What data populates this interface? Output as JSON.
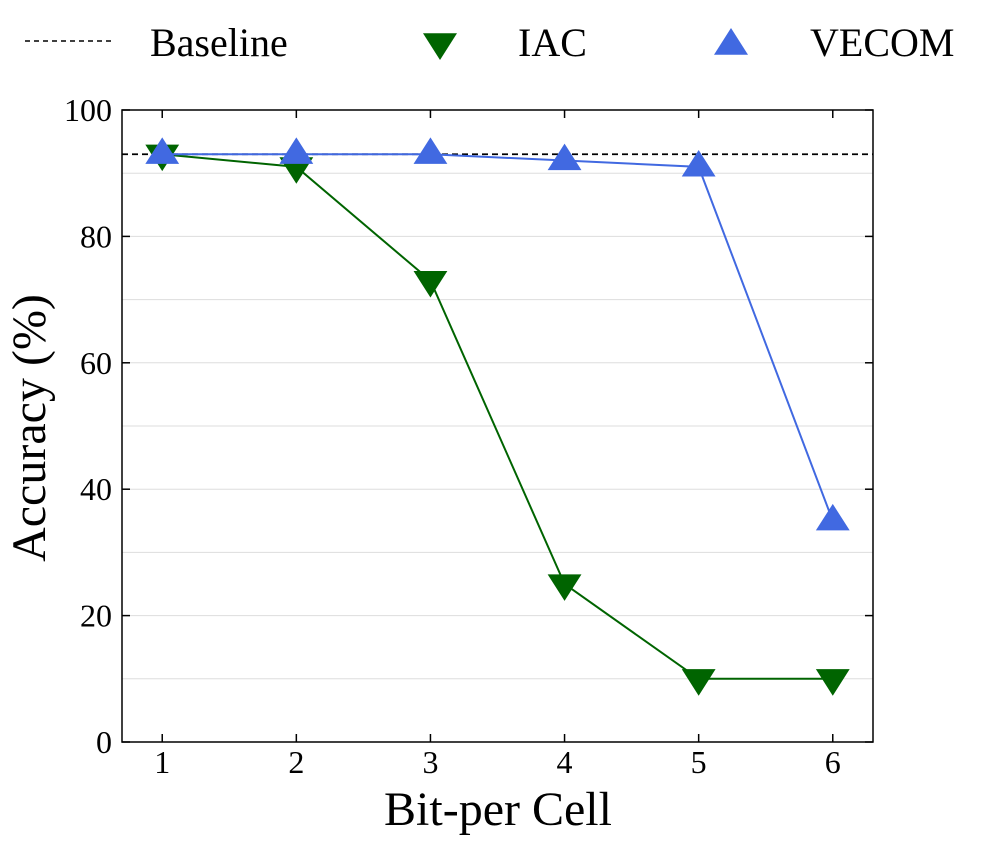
{
  "chart_data": {
    "type": "line",
    "title": "",
    "xlabel": "Bit-per Cell",
    "ylabel": "Accuracy (%)",
    "categories": [
      1,
      2,
      3,
      4,
      5,
      6
    ],
    "xlim": [
      0.7,
      6.3
    ],
    "ylim": [
      0,
      100
    ],
    "y_ticks": [
      0,
      20,
      40,
      60,
      80,
      100
    ],
    "y_minor_grid": [
      10,
      30,
      50,
      70,
      90
    ],
    "grid": "horizontal",
    "legend_position": "top",
    "baseline": {
      "name": "Baseline",
      "value": 93,
      "color": "#000000",
      "style": "dashed"
    },
    "series": [
      {
        "name": "IAC",
        "marker": "triangle-down",
        "color": "#006400",
        "values": [
          93,
          91,
          73,
          25,
          10,
          10
        ]
      },
      {
        "name": "VECOM",
        "marker": "triangle-up",
        "color": "#4169E1",
        "values": [
          93,
          93,
          93,
          92,
          91,
          35
        ]
      }
    ]
  }
}
